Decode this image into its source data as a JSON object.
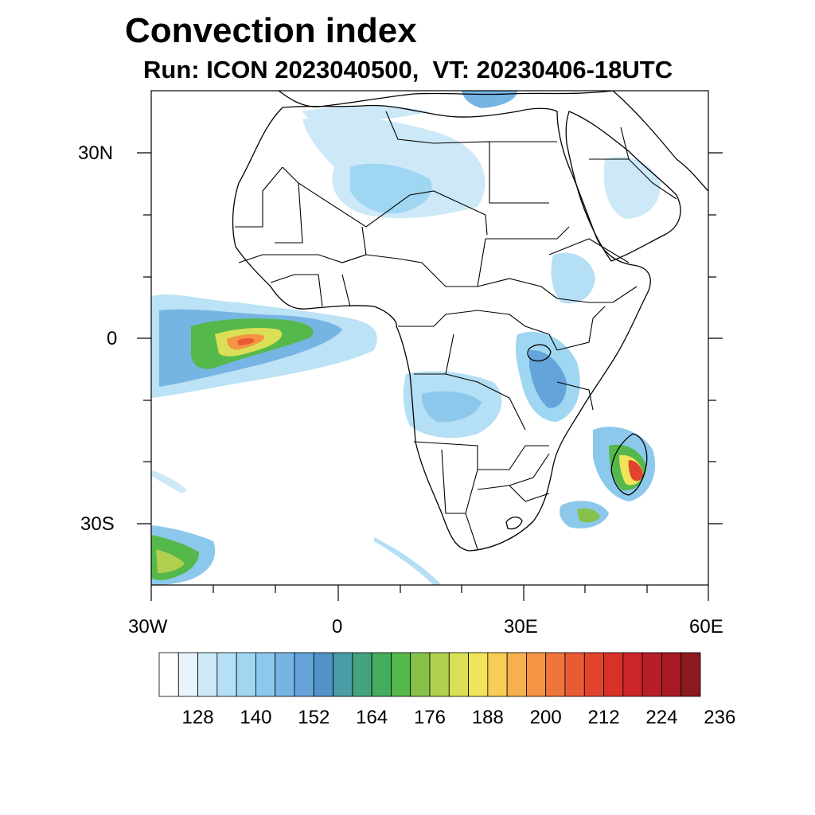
{
  "title": "Convection index",
  "subtitle": "Run: ICON 2023040500,  VT: 20230406-18UTC",
  "axes": {
    "lat_labels": [
      "30N",
      "0",
      "30S"
    ],
    "lon_labels": [
      "30W",
      "0",
      "30E",
      "60E"
    ],
    "lon_range": [
      -30,
      60
    ],
    "lat_range": [
      -40,
      40
    ]
  },
  "colorbar": {
    "labels": [
      "128",
      "140",
      "152",
      "164",
      "176",
      "188",
      "200",
      "212",
      "224",
      "236"
    ],
    "colors": [
      "#ffffff",
      "#e8f4fb",
      "#cde9f7",
      "#b4dff4",
      "#9fd6f2",
      "#8cc8ec",
      "#76b5e3",
      "#64a4da",
      "#5292c9",
      "#4a9ca5",
      "#45a27f",
      "#44ad5f",
      "#54b84a",
      "#86c24a",
      "#b2cf4f",
      "#dadf55",
      "#f2e45a",
      "#f8cd57",
      "#f6b04e",
      "#f49444",
      "#ef763a",
      "#e95c33",
      "#e1442d",
      "#d93029",
      "#cc2428",
      "#b91d27",
      "#a61b24",
      "#8b1a1e"
    ]
  },
  "legend_colors": {
    "land_outline": "#000000",
    "low_value": "#a8d8f0",
    "high_value": "#e64a2e"
  }
}
